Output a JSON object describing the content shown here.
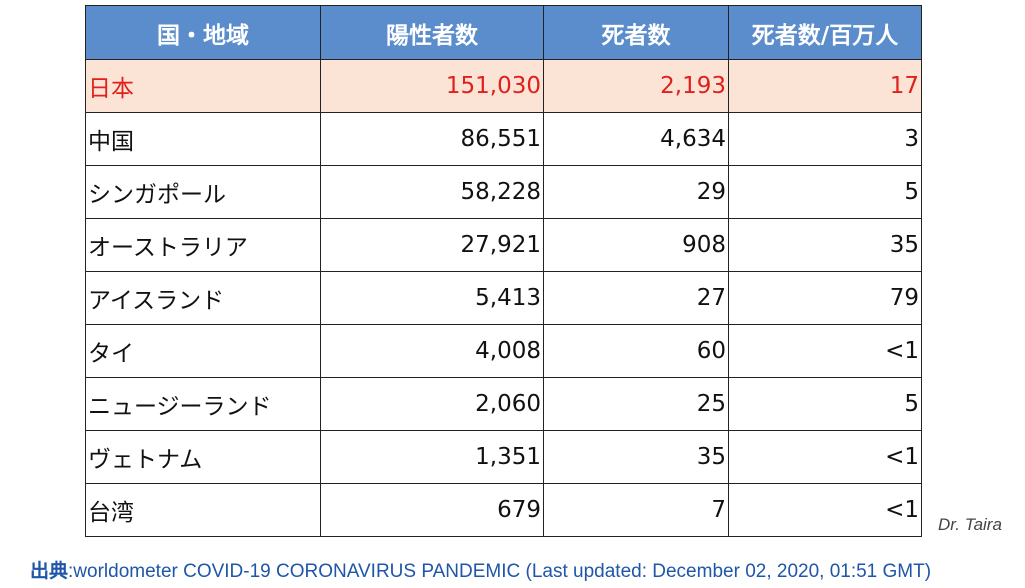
{
  "table": {
    "header": [
      "国・地域",
      "陽性者数",
      "死者数",
      "死者数/百万人"
    ],
    "rows": [
      [
        "日本",
        "151,030",
        "2,193",
        "17"
      ],
      [
        "中国",
        "86,551",
        "4,634",
        "3"
      ],
      [
        "シンガポール",
        "58,228",
        "29",
        "5"
      ],
      [
        "オーストラリア",
        "27,921",
        "908",
        "35"
      ],
      [
        "アイスランド",
        "5,413",
        "27",
        "79"
      ],
      [
        "タイ",
        "4,008",
        "60",
        "<1"
      ],
      [
        "ニュージーランド",
        "2,060",
        "25",
        "5"
      ],
      [
        "ヴェトナム",
        "1,351",
        "35",
        "<1"
      ],
      [
        "台湾",
        "679",
        "7",
        "<1"
      ]
    ]
  },
  "credit": "Dr. Taira",
  "source": {
    "label": "出典",
    "text": ":worldometer COVID-19 CORONAVIRUS PANDEMIC (Last updated: December 02, 2020, 01:51 GMT)"
  }
}
